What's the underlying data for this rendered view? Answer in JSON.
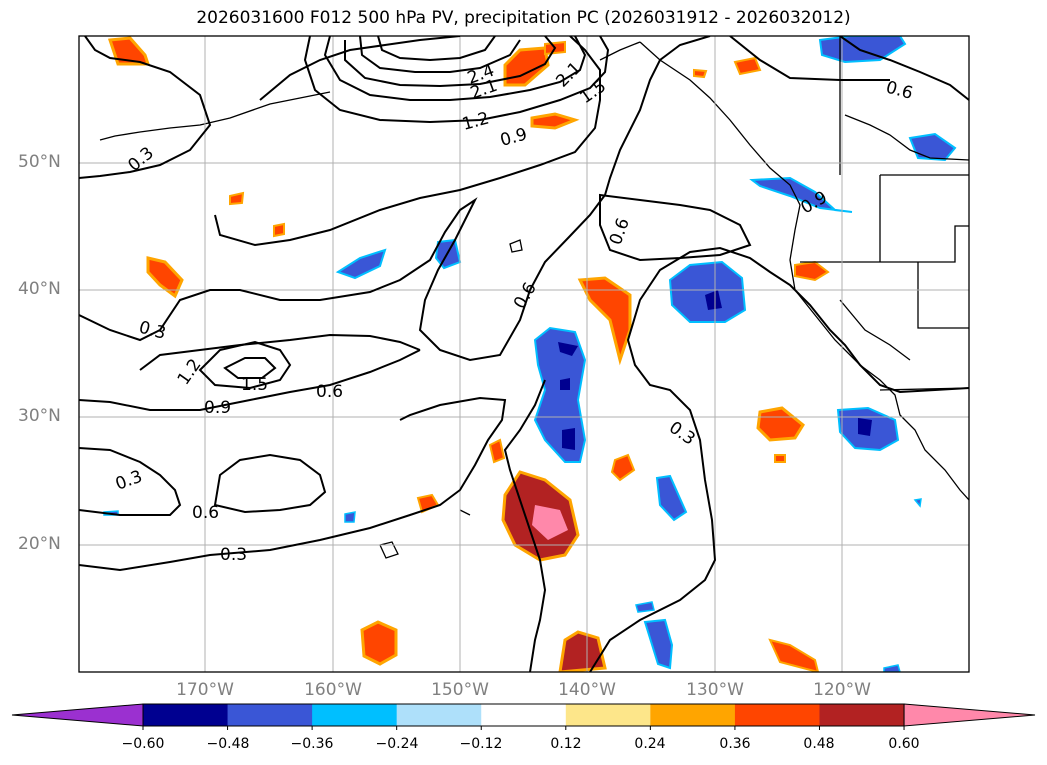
{
  "title": "2026031600 F012 500 hPa PV, precipitation PC (2026031912 - 2026032012)",
  "latitude_labels": [
    "50°N",
    "40°N",
    "30°N",
    "20°N"
  ],
  "longitude_labels": [
    "170°W",
    "160°W",
    "150°W",
    "140°W",
    "130°W",
    "120°W"
  ],
  "pv_contour_labels": [
    "0.3",
    "0.6",
    "0.9",
    "1.2",
    "1.5",
    "2.1",
    "2.4"
  ],
  "colorbar": {
    "ticks": [
      "−0.60",
      "−0.48",
      "−0.36",
      "−0.24",
      "−0.12",
      "0.12",
      "0.24",
      "0.36",
      "0.48",
      "0.60"
    ],
    "colors": [
      "#9b30d0",
      "#000090",
      "#3a56d6",
      "#00bfff",
      "#aee0fa",
      "#ffffff",
      "#fde68a",
      "#ffa500",
      "#ff4500",
      "#b22222",
      "#ff88aa"
    ]
  },
  "map_colors": {
    "orange": "#ff4500",
    "dark_red": "#b22222",
    "light_orange": "#ffa500",
    "yellow": "#fde68a",
    "blue": "#3a56d6",
    "navy": "#000090",
    "cyan": "#00bfff",
    "pink": "#ff88aa"
  }
}
